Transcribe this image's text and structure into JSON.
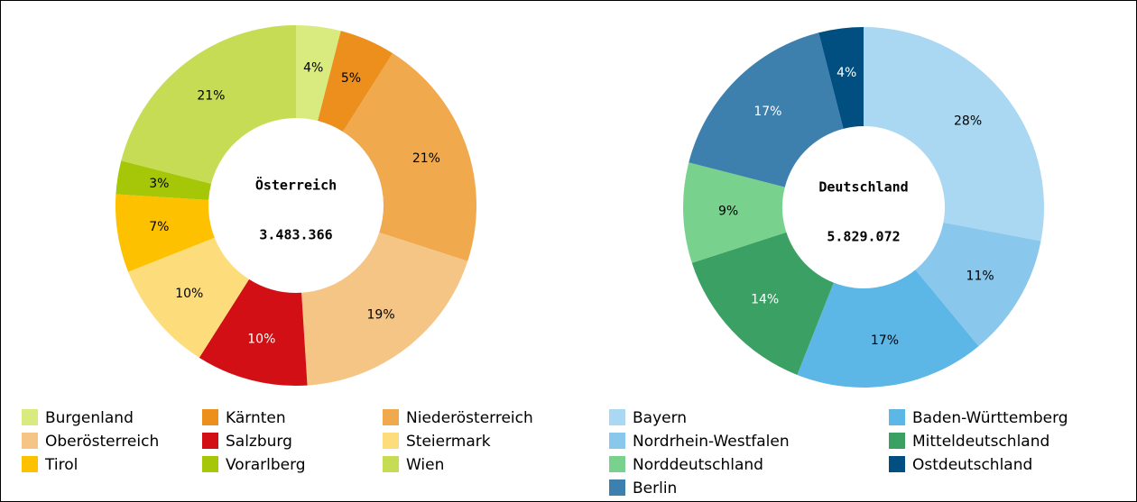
{
  "chart_data": [
    {
      "type": "pie",
      "donut": true,
      "title": "Österreich",
      "total": {
        "value": 3483366,
        "label": "3.483.366"
      },
      "categories": [
        "Burgenland",
        "Kärnten",
        "Niederösterreich",
        "Oberösterreich",
        "Salzburg",
        "Steiermark",
        "Tirol",
        "Vorarlberg",
        "Wien"
      ],
      "values": [
        4,
        5,
        21,
        19,
        10,
        10,
        7,
        3,
        21
      ],
      "value_labels": [
        "4%",
        "5%",
        "21%",
        "19%",
        "10%",
        "10%",
        "7%",
        "3%",
        "21%"
      ],
      "colors": [
        "#d9ea7e",
        "#ec8f1c",
        "#f0a94c",
        "#f5c586",
        "#d10f14",
        "#fddc7b",
        "#fdc100",
        "#a5c707",
        "#c5dc54"
      ]
    },
    {
      "type": "pie",
      "donut": true,
      "title": "Deutschland",
      "total": {
        "value": 5829072,
        "label": "5.829.072"
      },
      "categories": [
        "Bayern",
        "Nordrhein-Westfalen",
        "Baden-Württemberg",
        "Mitteldeutschland",
        "Norddeutschland",
        "Berlin",
        "Ostdeutschland"
      ],
      "values": [
        28,
        11,
        17,
        14,
        9,
        17,
        4
      ],
      "value_labels": [
        "28%",
        "11%",
        "17%",
        "14%",
        "9%",
        "17%",
        "4%"
      ],
      "colors": [
        "#aad8f2",
        "#8ac7ec",
        "#5cb6e6",
        "#3aa063",
        "#79d18e",
        "#3d7fad",
        "#004f80"
      ]
    }
  ]
}
